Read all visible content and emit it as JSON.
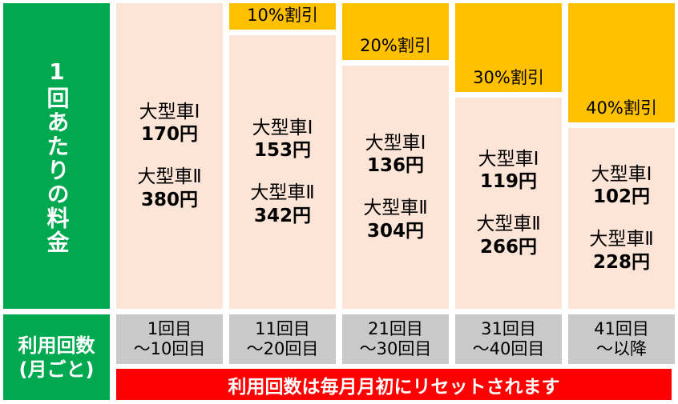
{
  "price_label": "1回あたりの料金",
  "usage_label": {
    "line1": "利用回数",
    "line2": "(月ごと)"
  },
  "columns": [
    {
      "vehicles": [
        {
          "type": "大型車Ⅰ",
          "price": "170円"
        },
        {
          "type": "大型車Ⅱ",
          "price": "380円"
        }
      ],
      "range": {
        "line1": "1回目",
        "line2": "～10回目"
      }
    },
    {
      "discount": "10%割引",
      "vehicles": [
        {
          "type": "大型車Ⅰ",
          "price": "153円"
        },
        {
          "type": "大型車Ⅱ",
          "price": "342円"
        }
      ],
      "range": {
        "line1": "11回目",
        "line2": "～20回目"
      }
    },
    {
      "discount": "20%割引",
      "vehicles": [
        {
          "type": "大型車Ⅰ",
          "price": "136円"
        },
        {
          "type": "大型車Ⅱ",
          "price": "304円"
        }
      ],
      "range": {
        "line1": "21回目",
        "line2": "～30回目"
      }
    },
    {
      "discount": "30%割引",
      "vehicles": [
        {
          "type": "大型車Ⅰ",
          "price": "119円"
        },
        {
          "type": "大型車Ⅱ",
          "price": "266円"
        }
      ],
      "range": {
        "line1": "31回目",
        "line2": "～40回目"
      }
    },
    {
      "discount": "40%割引",
      "vehicles": [
        {
          "type": "大型車Ⅰ",
          "price": "102円"
        },
        {
          "type": "大型車Ⅱ",
          "price": "228円"
        }
      ],
      "range": {
        "line1": "41回目",
        "line2": "～以降"
      }
    }
  ],
  "reset_note": "利用回数は毎月月初にリセットされます"
}
